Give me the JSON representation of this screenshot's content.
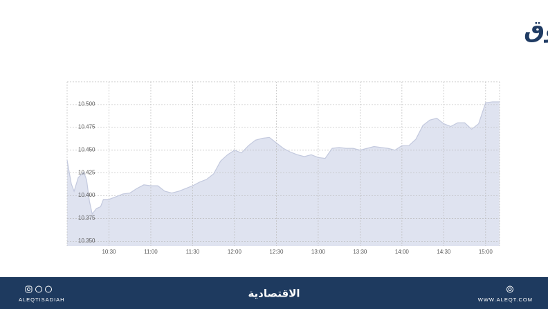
{
  "chart_data": {
    "type": "area",
    "title": "مؤشر السوق",
    "x": [
      "10:00",
      "10:03",
      "10:05",
      "10:08",
      "10:12",
      "10:14",
      "10:16",
      "10:18",
      "10:21",
      "10:24",
      "10:26",
      "10:30",
      "10:35",
      "10:40",
      "10:45",
      "10:50",
      "10:55",
      "11:00",
      "11:05",
      "11:10",
      "11:15",
      "11:20",
      "11:25",
      "11:30",
      "11:35",
      "11:40",
      "11:45",
      "11:50",
      "11:55",
      "12:00",
      "12:05",
      "12:10",
      "12:15",
      "12:20",
      "12:25",
      "12:30",
      "12:35",
      "12:40",
      "12:45",
      "12:50",
      "12:55",
      "13:00",
      "13:05",
      "13:10",
      "13:15",
      "13:20",
      "13:25",
      "13:30",
      "13:35",
      "13:40",
      "13:45",
      "13:50",
      "13:55",
      "14:00",
      "14:05",
      "14:10",
      "14:15",
      "14:20",
      "14:25",
      "14:30",
      "14:35",
      "14:40",
      "14:45",
      "14:50",
      "14:55",
      "15:00",
      "15:05",
      "15:10"
    ],
    "values": [
      10.439,
      10.413,
      10.405,
      10.42,
      10.426,
      10.417,
      10.394,
      10.38,
      10.386,
      10.388,
      10.396,
      10.396,
      10.399,
      10.402,
      10.403,
      10.408,
      10.412,
      10.411,
      10.411,
      10.405,
      10.403,
      10.405,
      10.408,
      10.411,
      10.415,
      10.418,
      10.424,
      10.438,
      10.445,
      10.45,
      10.447,
      10.455,
      10.461,
      10.463,
      10.464,
      10.458,
      10.452,
      10.448,
      10.445,
      10.443,
      10.445,
      10.442,
      10.441,
      10.452,
      10.453,
      10.452,
      10.452,
      10.45,
      10.452,
      10.454,
      10.453,
      10.452,
      10.45,
      10.455,
      10.455,
      10.462,
      10.477,
      10.483,
      10.485,
      10.479,
      10.476,
      10.48,
      10.48,
      10.473,
      10.479,
      10.502,
      10.503,
      10.503
    ],
    "color": "#dfe3f0",
    "line_color": "#c3c9de",
    "xlim": [
      "10:00",
      "15:10"
    ],
    "xticks": [
      "10:30",
      "11:00",
      "11:30",
      "12:00",
      "12:30",
      "13:00",
      "13:30",
      "14:00",
      "14:30",
      "15:00"
    ],
    "ylim": [
      10.345,
      10.525
    ],
    "yticks": [
      {
        "value": 10.35,
        "label": "10.350"
      },
      {
        "value": 10.375,
        "label": "10.375"
      },
      {
        "value": 10.4,
        "label": "10.400"
      },
      {
        "value": 10.425,
        "label": "10.425"
      },
      {
        "value": 10.45,
        "label": "10.450"
      },
      {
        "value": 10.475,
        "label": "10.475"
      },
      {
        "value": 10.5,
        "label": "10.500"
      }
    ],
    "grid": true
  },
  "footer": {
    "handle": "ALEQTISADIAH",
    "brand": "الاقتصادية",
    "website": "WWW.ALEQT.COM"
  }
}
